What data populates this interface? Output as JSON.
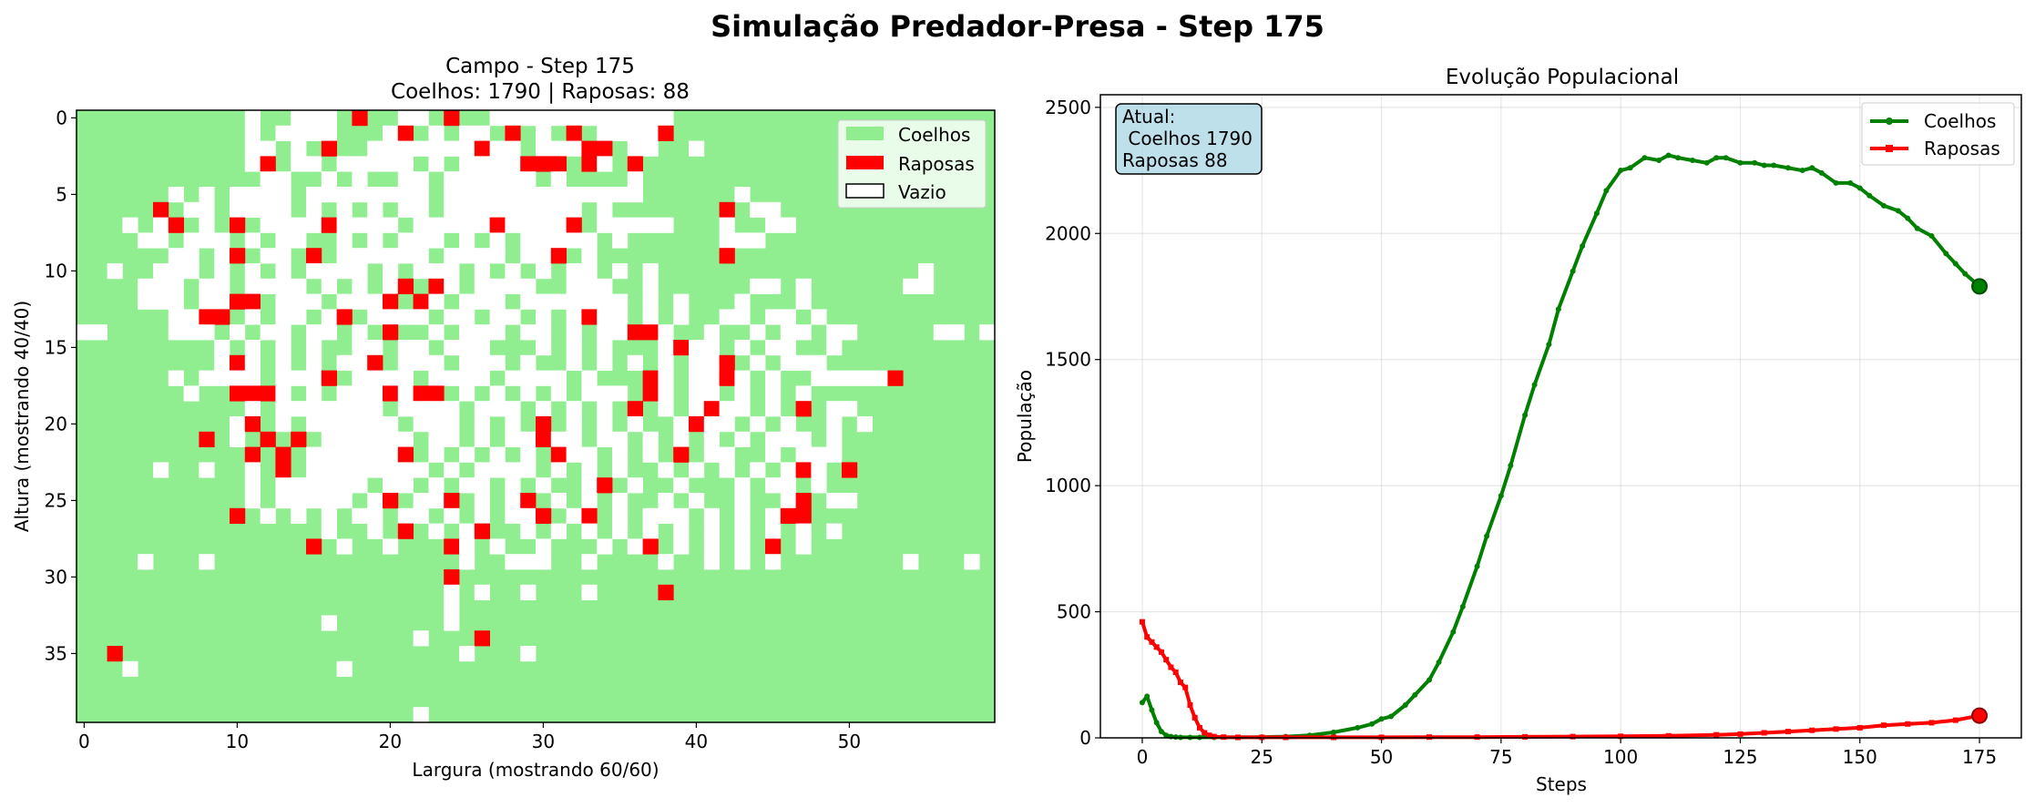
{
  "figure": {
    "suptitle": "Simulação Predador-Presa - Step 175"
  },
  "colors": {
    "rabbit": "#90EE90",
    "fox": "#FF0000",
    "empty": "#FFFFFF",
    "rabbit_line": "#008000",
    "fox_line": "#FF0000",
    "annotation_bg": "#ADD8E6"
  },
  "chart_data": [
    {
      "type": "heatmap",
      "title": "Campo - Step 175",
      "subtitle": "Coelhos: 1790 |  Raposas: 88",
      "xlabel": "Largura (mostrando 60/60)",
      "ylabel": "Altura (mostrando 40/40)",
      "xlim": [
        -0.5,
        59.5
      ],
      "ylim": [
        39.5,
        -0.5
      ],
      "xticks": [
        0,
        10,
        20,
        30,
        40,
        50
      ],
      "yticks": [
        0,
        5,
        10,
        15,
        20,
        25,
        30,
        35
      ],
      "grid_size": [
        60,
        40
      ],
      "legend": {
        "position": "top-right",
        "entries": [
          "Coelhos",
          "Raposas",
          "Vazio"
        ]
      },
      "encoding": {
        "1": "Coelhos",
        "2": "Raposas",
        "0": "Vazio"
      },
      "cells_by_row": [
        [
          "           0  000 2  00 2  000000000000                       "
        ],
        [
          "           0 0000   02 0 00 2 0 2 00002                       "
        ],
        [
          "           00 0 2  0000000200 00022 00  0                      "
        ],
        [
          "           02 00 00000 0 0000222 20 2                         "
        ],
        [
          "            00  0 0  00 000000 0    0                         "
        ],
        [
          "      0 0 0000 00000000 0000000000000      0                  "
        ],
        [
          "     2 00 0000 0 0 0 00 000000000 0       2 00                "
        ],
        [
          "   0 02 0 2 000020000 00000200002 00000   0  00               "
        ],
        [
          "    00 000 0 00  0 0 000 0 0 00000 0      000                 "
        ],
        [
          "      00 02 00 2 000000 0000 002 0        2                   "
        ],
        [
          "  0  000 0 0 0 0000 0 000 0 0 0 00 0 0                 0    0 "
        ],
        [
          "    000 00 0000 0 0 02 20 0000  000  0      00 0      00      "
        ],
        [
          "    000 0022 000 0002 20 000 0000000 0 0   0   0              "
        ],
        [
          "      0022 0 00 02 0000 00 00 0 0200 0 0  00 00 0             "
        ],
        [
          "00    000 0 00 00 0 2  0 000 00 0 00220  0  0 00 00     00 0  "
        ],
        [
          "         0 0 0 0  00 00 000   0 0 0   0200 0 00  0            "
        ],
        [
          "         020 0 0 002 000 000 0  0 0 0 0 002 0 000             "
        ],
        [
          "      0 0000 0002 0000 0000 0000 0   20 0020 0  000002        "
        ],
        [
          "       0  2220 0 0002022 0 0 0 0 000 20 00 0 0 0              "
        ],
        [
          "           0 0000000 0000 000 0 0 0 2 0 0200 0 2 00           "
        ],
        [
          "          02 0 000000 000 0 0 2 0 0 0  0200 0 0  0 0          "
        ],
        [
          "        2 0 2 2 000000 00 0 00200 00 0 0 0 0 000 0            "
        ],
        [
          "           2 2 0000002 0 0 0 0 200 0 0 2 00  0 000            "
        ],
        [
          "     0  0  0 2 00000000 0 0000 0 0 0  0 0 0 0 020 2           "
        ],
        [
          "           0 000000 00 0 00 0 0  02 0  0   0 00 0             "
        ],
        [
          "           0 00000 02 002 0 02 0 0 0  0 0  0  02 00           "
        ],
        [
          "          2 0 0 0 00 00 0 0 002 02 0 000 0 0 022              "
        ],
        [
          "                0  0 2 0 02  0 0 0 0 0 0 0 0 0 0 0           "
        ],
        [
          "               2 0  0   20 0  0   0 02 0 0 0 2 0              "
        ],
        [
          "    0   0                0  000  0    0  0 0 0        0   0   "
        ],
        [
          "                        2                                     "
        ],
        [
          "                        0 0  0   0    2                       "
        ],
        [
          "                        0                                     "
        ],
        [
          "                0       0                                     "
        ],
        [
          "                      0   2                                   "
        ],
        [
          "  2                      0   0                                "
        ],
        [
          "   0             0                                            "
        ],
        [
          "                                                              "
        ],
        [
          "                                                              "
        ],
        [
          "                      0                                       "
        ]
      ]
    },
    {
      "type": "line",
      "title": "Evolução Populacional",
      "xlabel": "Steps",
      "ylabel": "População",
      "xlim": [
        -8.75,
        183.75
      ],
      "ylim": [
        0,
        2550
      ],
      "xticks": [
        0,
        25,
        50,
        75,
        100,
        125,
        150,
        175
      ],
      "yticks": [
        0,
        500,
        1000,
        1500,
        2000,
        2500
      ],
      "grid": true,
      "legend": {
        "position": "top-right"
      },
      "annotation": {
        "lines": [
          "Atual:",
          " Coelhos 1790",
          "Raposas 88"
        ]
      },
      "series": [
        {
          "name": "Coelhos",
          "color": "#008000",
          "marker": "circle",
          "x": [
            0,
            1,
            2,
            3,
            4,
            5,
            6,
            7,
            8,
            10,
            12,
            15,
            20,
            25,
            30,
            35,
            40,
            45,
            48,
            50,
            52,
            55,
            57,
            60,
            62,
            65,
            67,
            70,
            72,
            75,
            77,
            80,
            82,
            85,
            87,
            90,
            92,
            95,
            97,
            100,
            102,
            105,
            108,
            110,
            112,
            115,
            118,
            120,
            122,
            125,
            128,
            130,
            132,
            135,
            138,
            140,
            142,
            145,
            148,
            150,
            152,
            155,
            158,
            160,
            162,
            165,
            168,
            170,
            172,
            175
          ],
          "y": [
            140,
            165,
            110,
            60,
            25,
            10,
            5,
            3,
            2,
            2,
            2,
            2,
            2,
            3,
            5,
            10,
            22,
            40,
            55,
            75,
            85,
            130,
            170,
            230,
            300,
            420,
            520,
            680,
            800,
            960,
            1080,
            1280,
            1400,
            1560,
            1700,
            1850,
            1950,
            2080,
            2170,
            2250,
            2260,
            2300,
            2290,
            2310,
            2300,
            2290,
            2280,
            2300,
            2300,
            2280,
            2280,
            2270,
            2270,
            2260,
            2250,
            2260,
            2240,
            2200,
            2200,
            2180,
            2150,
            2110,
            2090,
            2060,
            2020,
            1990,
            1920,
            1880,
            1840,
            1790
          ]
        },
        {
          "name": "Raposas",
          "color": "#FF0000",
          "marker": "square",
          "x": [
            0,
            1,
            2,
            3,
            4,
            5,
            6,
            7,
            8,
            9,
            10,
            11,
            12,
            13,
            14,
            15,
            17,
            20,
            25,
            30,
            40,
            50,
            60,
            70,
            80,
            90,
            100,
            110,
            120,
            125,
            130,
            135,
            140,
            145,
            150,
            155,
            160,
            165,
            170,
            175
          ],
          "y": [
            460,
            400,
            380,
            360,
            340,
            310,
            280,
            260,
            220,
            200,
            130,
            80,
            40,
            20,
            10,
            5,
            3,
            2,
            2,
            2,
            2,
            2,
            3,
            3,
            4,
            5,
            6,
            8,
            12,
            15,
            20,
            25,
            30,
            35,
            40,
            50,
            55,
            60,
            70,
            88
          ]
        }
      ]
    }
  ]
}
